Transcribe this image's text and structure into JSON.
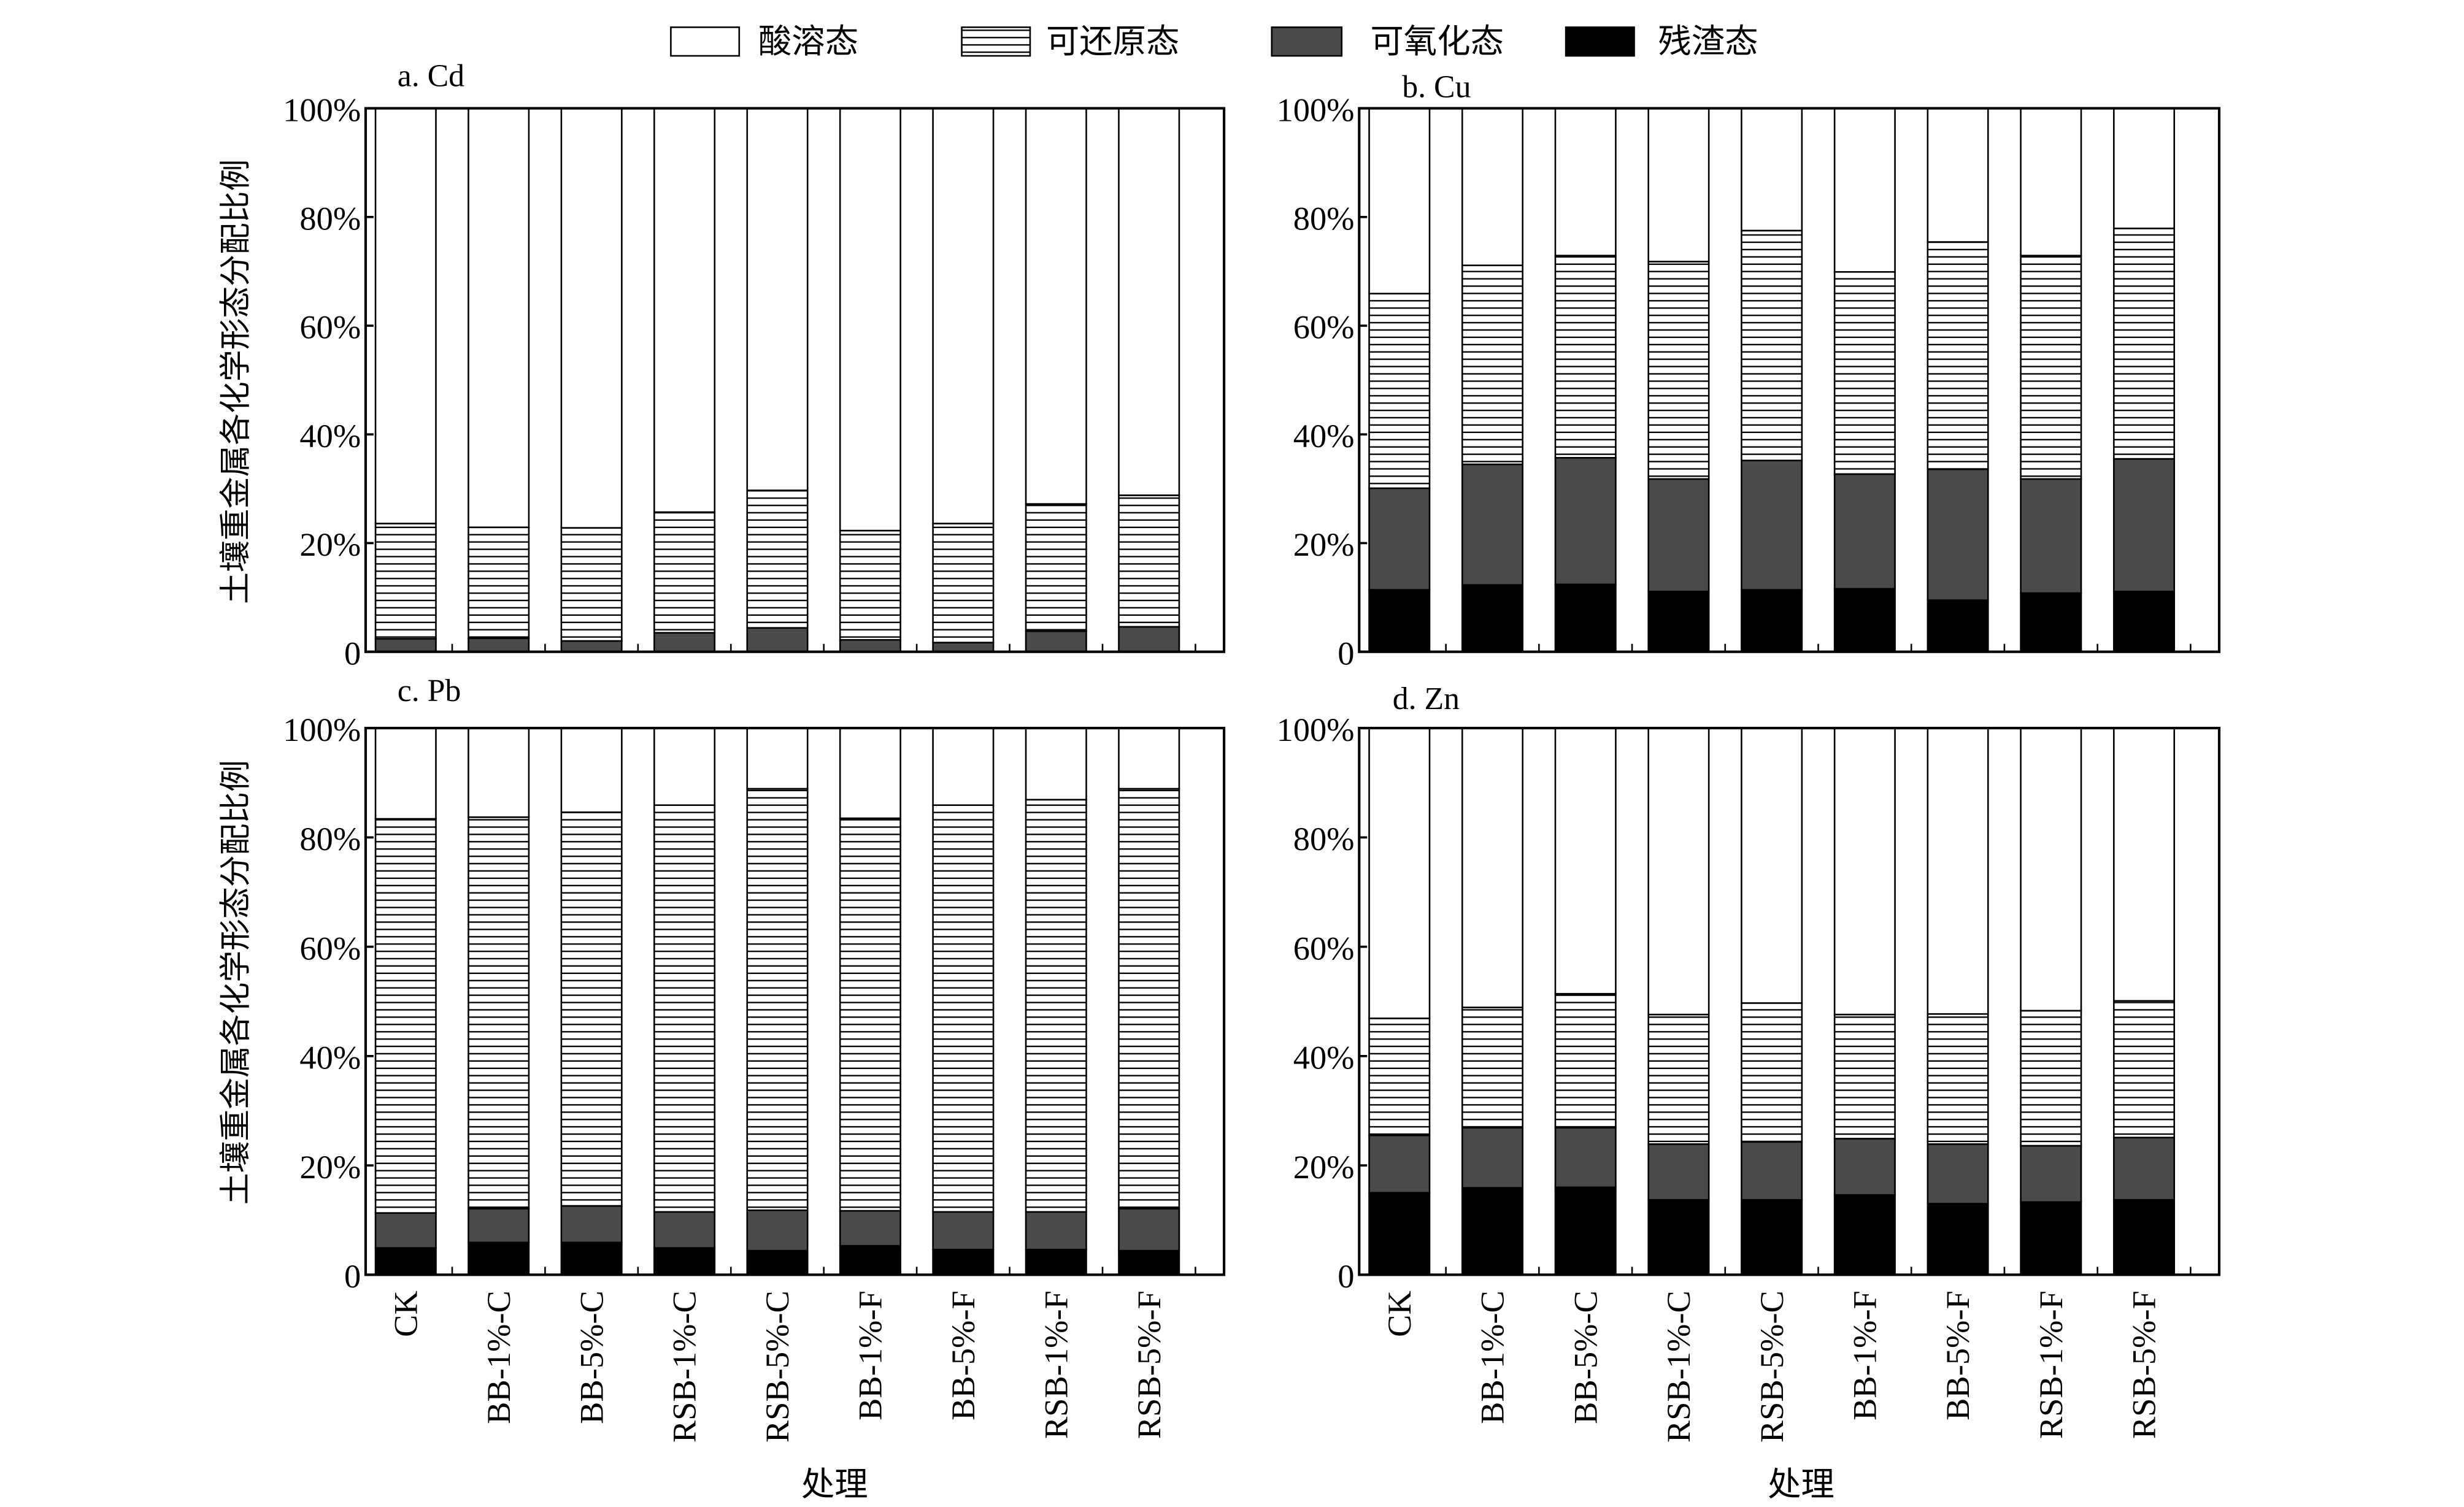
{
  "legend": [
    "酸溶态",
    "可还原态",
    "可氧化态",
    "残渣态"
  ],
  "colors": {
    "acid": "#ffffff",
    "reducible": "#ffffff",
    "oxidizable": "#4a4a4a",
    "residual": "#000000",
    "hatch": "#000000"
  },
  "ylabel": "土壤重金属各化学形态分配比例",
  "xlabel": "处理",
  "yticks": [
    "0",
    "20%",
    "40%",
    "60%",
    "80%",
    "100%"
  ],
  "chart_data": [
    {
      "type": "bar",
      "stacked": true,
      "title": "a. Cd",
      "categories": [
        "CK",
        "BB-1%-C",
        "BB-5%-C",
        "RSB-1%-C",
        "RSB-5%-C",
        "BB-1%-F",
        "BB-5%-F",
        "RSB-1%-F",
        "RSB-5%-F"
      ],
      "series": [
        {
          "name": "残渣态",
          "values": [
            0,
            0,
            0,
            0,
            0,
            0,
            0,
            0,
            0
          ]
        },
        {
          "name": "可氧化态",
          "values": [
            2.4,
            2.5,
            2.0,
            3.5,
            4.4,
            2.2,
            1.7,
            3.8,
            4.6
          ]
        },
        {
          "name": "可还原态",
          "values": [
            21.2,
            20.4,
            20.8,
            22.2,
            25.3,
            20.1,
            21.9,
            23.4,
            24.2
          ]
        },
        {
          "name": "酸溶态",
          "values": [
            76.4,
            77.1,
            77.2,
            74.3,
            70.3,
            77.7,
            76.4,
            72.8,
            71.2
          ]
        }
      ],
      "ylim": [
        0,
        100
      ],
      "ylabel": "土壤重金属各化学形态分配比例",
      "xlabel": ""
    },
    {
      "type": "bar",
      "stacked": true,
      "title": "b. Cu",
      "categories": [
        "CK",
        "BB-1%-C",
        "BB-5%-C",
        "RSB-1%-C",
        "RSB-5%-C",
        "BB-1%-F",
        "BB-5%-F",
        "RSB-1%-F",
        "RSB-5%-F"
      ],
      "series": [
        {
          "name": "残渣态",
          "values": [
            11.4,
            12.3,
            12.4,
            11.1,
            11.4,
            11.6,
            9.5,
            10.8,
            11.1
          ]
        },
        {
          "name": "可氧化态",
          "values": [
            18.7,
            22.2,
            23.3,
            20.7,
            23.8,
            21.1,
            24.1,
            21.0,
            24.4
          ]
        },
        {
          "name": "可还原态",
          "values": [
            35.8,
            36.6,
            37.2,
            40.0,
            42.3,
            37.2,
            41.8,
            41.1,
            42.4
          ]
        },
        {
          "name": "酸溶态",
          "values": [
            34.1,
            28.9,
            27.1,
            28.2,
            22.5,
            30.1,
            24.6,
            27.1,
            22.1
          ]
        }
      ],
      "ylim": [
        0,
        100
      ],
      "ylabel": "",
      "xlabel": ""
    },
    {
      "type": "bar",
      "stacked": true,
      "title": "c. Pb",
      "categories": [
        "CK",
        "BB-1%-C",
        "BB-5%-C",
        "RSB-1%-C",
        "RSB-5%-C",
        "BB-1%-F",
        "BB-5%-F",
        "RSB-1%-F",
        "RSB-5%-F"
      ],
      "series": [
        {
          "name": "残渣态",
          "values": [
            4.9,
            5.9,
            5.9,
            4.9,
            4.4,
            5.3,
            4.6,
            4.6,
            4.4
          ]
        },
        {
          "name": "可氧化态",
          "values": [
            6.4,
            6.2,
            6.7,
            6.6,
            7.4,
            6.4,
            6.9,
            6.9,
            7.7
          ]
        },
        {
          "name": "可还原态",
          "values": [
            72.1,
            71.6,
            72.0,
            74.4,
            77.1,
            71.8,
            74.4,
            75.4,
            76.8
          ]
        },
        {
          "name": "酸溶态",
          "values": [
            16.6,
            16.3,
            15.4,
            14.1,
            11.1,
            16.5,
            14.1,
            13.1,
            11.1
          ]
        }
      ],
      "ylim": [
        0,
        100
      ],
      "ylabel": "土壤重金属各化学形态分配比例",
      "xlabel": "处理"
    },
    {
      "type": "bar",
      "stacked": true,
      "title": "d. Zn",
      "categories": [
        "CK",
        "BB-1%-C",
        "BB-5%-C",
        "RSB-1%-C",
        "RSB-5%-C",
        "BB-1%-F",
        "BB-5%-F",
        "RSB-1%-F",
        "RSB-5%-F"
      ],
      "series": [
        {
          "name": "残渣态",
          "values": [
            15.0,
            15.9,
            16.0,
            13.7,
            13.7,
            14.6,
            13.0,
            13.3,
            13.7
          ]
        },
        {
          "name": "可氧化态",
          "values": [
            10.5,
            11.0,
            10.9,
            10.2,
            10.6,
            10.3,
            10.9,
            10.3,
            11.4
          ]
        },
        {
          "name": "可还原态",
          "values": [
            21.4,
            22.0,
            24.5,
            23.7,
            25.4,
            22.7,
            23.8,
            24.7,
            25.0
          ]
        },
        {
          "name": "酸溶态",
          "values": [
            53.1,
            51.1,
            48.6,
            52.4,
            50.3,
            52.4,
            52.3,
            51.7,
            49.9
          ]
        }
      ],
      "ylim": [
        0,
        100
      ],
      "ylabel": "",
      "xlabel": "处理"
    }
  ]
}
